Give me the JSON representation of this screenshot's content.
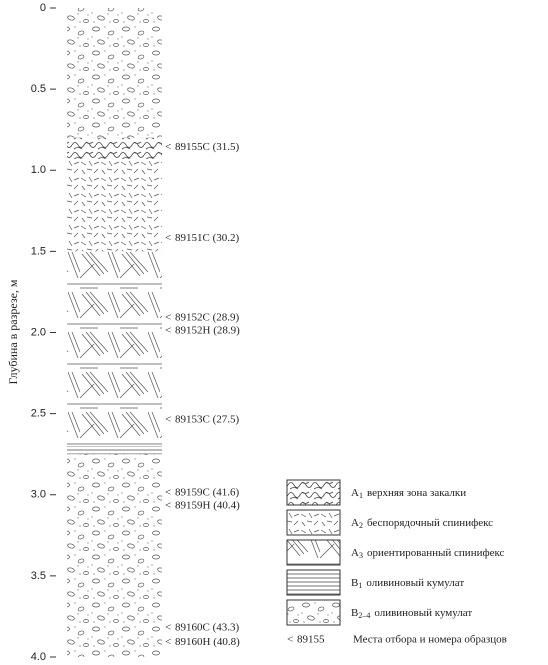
{
  "chart_data": {
    "type": "column",
    "y_label": "Глубина в разрезе, м",
    "ylim": [
      0,
      4
    ],
    "yticks": [
      0,
      0.5,
      {
        "value": 1,
        "label": "1.0"
      },
      1.5,
      {
        "value": 2,
        "label": "2.0"
      },
      2.5,
      {
        "value": 3,
        "label": "3.0"
      },
      3.5,
      {
        "value": 4,
        "label": "4.0"
      }
    ],
    "legend": [
      {
        "symbol": "A",
        "sub": "1",
        "text": "верхняя зона закалки",
        "intervals": [
          [
            0.8,
            0.93
          ]
        ]
      },
      {
        "symbol": "A",
        "sub": "2",
        "text": "беспорядочный спинифекс",
        "intervals": [
          [
            0.93,
            1.5
          ]
        ]
      },
      {
        "symbol": "A",
        "sub": "3",
        "text": "ориентированный спинифекс",
        "intervals": [
          [
            1.5,
            2.7
          ]
        ]
      },
      {
        "symbol": "B",
        "sub": "1",
        "text": "оливиновый кумулат",
        "intervals": [
          [
            2.7,
            2.75
          ]
        ]
      },
      {
        "symbol": "B",
        "sub": "2–4",
        "text": "оливиновый кумулат",
        "intervals": [
          [
            0,
            0.8
          ],
          [
            2.75,
            4
          ]
        ]
      }
    ],
    "samples_key": {
      "example": "89155",
      "text": "Места отбора и номера образцов"
    },
    "samples": [
      {
        "label": "89155С (31.5)",
        "depth": 0.86
      },
      {
        "label": "89151С (30.2)",
        "depth": 1.42
      },
      {
        "label": "89152С (28.9)",
        "depth": 1.91
      },
      {
        "label": "89152Н (28.9)",
        "depth": 1.99
      },
      {
        "label": "89153С (27.5)",
        "depth": 2.54
      },
      {
        "label": "89159С (41.6)",
        "depth": 2.99
      },
      {
        "label": "89159Н (40.4)",
        "depth": 3.07
      },
      {
        "label": "89160С (43.3)",
        "depth": 3.82
      },
      {
        "label": "89160Н (40.8)",
        "depth": 3.91
      }
    ]
  }
}
